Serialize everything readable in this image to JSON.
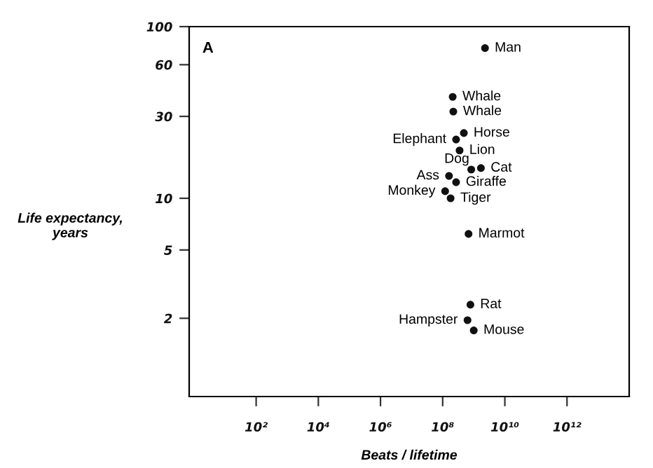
{
  "chart_data": {
    "type": "scatter",
    "xlabel": "Beats / lifetime",
    "ylabel": "Life expectancy,\nyears",
    "x": [
      2300000000.0,
      210000000.0,
      220000000.0,
      480000000.0,
      270000000.0,
      350000000.0,
      830000000.0,
      1700000000.0,
      160000000.0,
      270000000.0,
      120000000.0,
      180000000.0,
      680000000.0,
      780000000.0,
      630000000.0,
      1000000000.0
    ],
    "values": [
      75,
      39,
      32,
      24,
      22,
      19,
      14.7,
      15,
      13.5,
      12.4,
      11,
      10,
      6.2,
      2.4,
      1.95,
      1.7
    ],
    "color": "#111111",
    "marker": "circle",
    "log": "xy",
    "grid": false,
    "legend": false,
    "xlim": [
      0.7,
      100000000000000.0
    ],
    "ylim": [
      0.7,
      100
    ],
    "xticks": [
      {
        "value": 100,
        "label": "10²"
      },
      {
        "value": 10000,
        "label": "10⁴"
      },
      {
        "value": 1000000,
        "label": "10⁶"
      },
      {
        "value": 100000000,
        "label": "10⁸"
      },
      {
        "value": 10000000000,
        "label": "10¹⁰"
      },
      {
        "value": 1000000000000,
        "label": "10¹²"
      }
    ],
    "yticks": [
      2,
      5,
      10,
      30,
      60,
      100
    ],
    "annotations": [
      "A",
      {
        "text": "Man",
        "x": 2300000000.0,
        "y": 75
      },
      {
        "text": "Whale",
        "x": 210000000.0,
        "y": 39
      },
      {
        "text": "Whale",
        "x": 220000000.0,
        "y": 32
      },
      {
        "text": "Horse",
        "x": 480000000.0,
        "y": 24
      },
      {
        "text": "Elephant",
        "x": 270000000.0,
        "y": 22
      },
      {
        "text": "Lion",
        "x": 350000000.0,
        "y": 19
      },
      {
        "text": "Dog",
        "x": 830000000.0,
        "y": 14.7
      },
      {
        "text": "Cat",
        "x": 1700000000.0,
        "y": 15
      },
      {
        "text": "Ass",
        "x": 160000000.0,
        "y": 13.5
      },
      {
        "text": "Giraffe",
        "x": 270000000.0,
        "y": 12.4
      },
      {
        "text": "Monkey",
        "x": 120000000.0,
        "y": 11
      },
      {
        "text": "Tiger",
        "x": 180000000.0,
        "y": 10
      },
      {
        "text": "Marmot",
        "x": 680000000.0,
        "y": 6.2
      },
      {
        "text": "Rat",
        "x": 780000000.0,
        "y": 2.4
      },
      {
        "text": "Hampster",
        "x": 630000000.0,
        "y": 1.95
      },
      {
        "text": "Mouse",
        "x": 1000000000.0,
        "y": 1.7
      }
    ]
  }
}
